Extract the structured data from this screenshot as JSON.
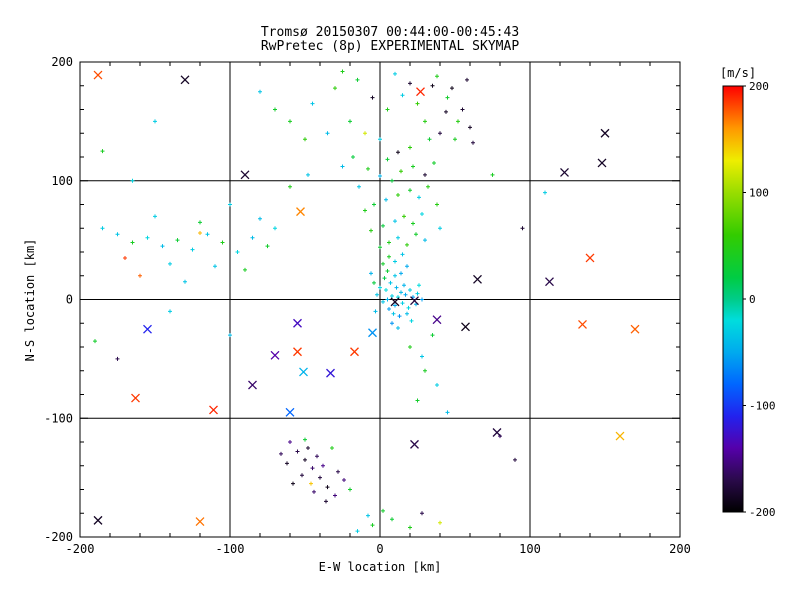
{
  "chart_data": {
    "type": "scatter",
    "title": "Tromsø 20150307 00:44:00-00:45:43",
    "subtitle": "RwPretec (8p) EXPERIMENTAL SKYMAP",
    "xlabel": "E-W location [km]",
    "ylabel": "N-S location [km]",
    "xlim": [
      -200,
      200
    ],
    "ylim": [
      -200,
      200
    ],
    "xticks": [
      -200,
      -100,
      0,
      100,
      200
    ],
    "yticks": [
      -200,
      -100,
      0,
      100,
      200
    ],
    "gridlines": [
      -100,
      0,
      100
    ],
    "minor_tick_step": 20,
    "grid": "on",
    "colorbar": {
      "label": "[m/s]",
      "ticks": [
        200,
        100,
        0,
        -100,
        -200
      ],
      "range": [
        -200,
        200
      ]
    },
    "colormap_stops": [
      {
        "v": -200,
        "c": "#000000"
      },
      {
        "v": -170,
        "c": "#2a0a4a"
      },
      {
        "v": -140,
        "c": "#5500aa"
      },
      {
        "v": -110,
        "c": "#2222ee"
      },
      {
        "v": -80,
        "c": "#0066ff"
      },
      {
        "v": -50,
        "c": "#00aaee"
      },
      {
        "v": -20,
        "c": "#00dddd"
      },
      {
        "v": 0,
        "c": "#00cc88"
      },
      {
        "v": 20,
        "c": "#00cc44"
      },
      {
        "v": 60,
        "c": "#33cc00"
      },
      {
        "v": 100,
        "c": "#99dd00"
      },
      {
        "v": 130,
        "c": "#eeee00"
      },
      {
        "v": 160,
        "c": "#ff9900"
      },
      {
        "v": 200,
        "c": "#ff0000"
      }
    ],
    "point_format": [
      "x_km",
      "y_km",
      "velocity_ms",
      "marker(0=dot,1=x)"
    ],
    "points": [
      [
        2,
        -2,
        -35,
        0
      ],
      [
        5,
        0,
        -45,
        0
      ],
      [
        8,
        3,
        -30,
        0
      ],
      [
        10,
        -5,
        -50,
        0
      ],
      [
        12,
        2,
        -25,
        0
      ],
      [
        14,
        6,
        -40,
        0
      ],
      [
        6,
        -8,
        -55,
        0
      ],
      [
        9,
        -12,
        -35,
        0
      ],
      [
        4,
        8,
        -20,
        0
      ],
      [
        11,
        10,
        -45,
        0
      ],
      [
        15,
        -3,
        -30,
        0
      ],
      [
        17,
        4,
        -50,
        0
      ],
      [
        19,
        -7,
        -25,
        0
      ],
      [
        13,
        -14,
        -60,
        0
      ],
      [
        7,
        14,
        -35,
        0
      ],
      [
        3,
        18,
        20,
        0
      ],
      [
        16,
        12,
        -45,
        0
      ],
      [
        20,
        8,
        -30,
        0
      ],
      [
        22,
        2,
        -55,
        0
      ],
      [
        18,
        -12,
        -40,
        0
      ],
      [
        21,
        -18,
        -25,
        0
      ],
      [
        10,
        20,
        -35,
        0
      ],
      [
        5,
        24,
        30,
        0
      ],
      [
        14,
        22,
        -50,
        0
      ],
      [
        25,
        5,
        -30,
        0
      ],
      [
        24,
        -4,
        -45,
        0
      ],
      [
        8,
        -20,
        -60,
        0
      ],
      [
        12,
        -24,
        -40,
        0
      ],
      [
        0,
        10,
        -25,
        0
      ],
      [
        -2,
        4,
        -35,
        0
      ],
      [
        -4,
        14,
        25,
        0
      ],
      [
        -6,
        22,
        -45,
        0
      ],
      [
        2,
        30,
        35,
        0
      ],
      [
        10,
        32,
        -30,
        0
      ],
      [
        18,
        28,
        -50,
        0
      ],
      [
        -3,
        -10,
        -40,
        0
      ],
      [
        26,
        12,
        -20,
        0
      ],
      [
        28,
        0,
        -55,
        0
      ],
      [
        6,
        36,
        40,
        0
      ],
      [
        15,
        38,
        -35,
        0
      ],
      [
        0,
        44,
        30,
        0
      ],
      [
        6,
        48,
        45,
        0
      ],
      [
        12,
        52,
        -30,
        0
      ],
      [
        18,
        46,
        55,
        0
      ],
      [
        24,
        55,
        35,
        0
      ],
      [
        30,
        50,
        -40,
        0
      ],
      [
        -6,
        58,
        50,
        0
      ],
      [
        2,
        62,
        25,
        0
      ],
      [
        10,
        66,
        -35,
        0
      ],
      [
        16,
        70,
        60,
        0
      ],
      [
        22,
        64,
        40,
        0
      ],
      [
        28,
        72,
        -25,
        0
      ],
      [
        -10,
        75,
        45,
        0
      ],
      [
        -4,
        80,
        30,
        0
      ],
      [
        4,
        84,
        -40,
        0
      ],
      [
        12,
        88,
        55,
        0
      ],
      [
        20,
        92,
        35,
        0
      ],
      [
        26,
        86,
        -30,
        0
      ],
      [
        32,
        95,
        50,
        0
      ],
      [
        8,
        100,
        25,
        0
      ],
      [
        0,
        104,
        -45,
        0
      ],
      [
        14,
        108,
        60,
        0
      ],
      [
        22,
        112,
        40,
        0
      ],
      [
        30,
        105,
        -180,
        0
      ],
      [
        -8,
        110,
        45,
        0
      ],
      [
        -14,
        95,
        -35,
        0
      ],
      [
        5,
        118,
        30,
        0
      ],
      [
        12,
        124,
        -190,
        0
      ],
      [
        20,
        128,
        55,
        0
      ],
      [
        36,
        115,
        35,
        0
      ],
      [
        40,
        60,
        -30,
        0
      ],
      [
        38,
        80,
        50,
        0
      ],
      [
        -18,
        120,
        25,
        0
      ],
      [
        -25,
        112,
        -40,
        0
      ],
      [
        -60,
        150,
        40,
        0
      ],
      [
        -45,
        165,
        -35,
        0
      ],
      [
        -30,
        178,
        55,
        0
      ],
      [
        -15,
        185,
        30,
        0
      ],
      [
        -5,
        170,
        -185,
        0
      ],
      [
        5,
        160,
        45,
        0
      ],
      [
        15,
        172,
        -30,
        0
      ],
      [
        25,
        165,
        60,
        0
      ],
      [
        35,
        180,
        -190,
        0
      ],
      [
        45,
        170,
        35,
        0
      ],
      [
        55,
        160,
        -180,
        0
      ],
      [
        30,
        150,
        50,
        0
      ],
      [
        40,
        140,
        -175,
        0
      ],
      [
        50,
        135,
        40,
        0
      ],
      [
        60,
        145,
        -185,
        0
      ],
      [
        -20,
        150,
        30,
        0
      ],
      [
        -35,
        140,
        -40,
        0
      ],
      [
        -50,
        135,
        55,
        0
      ],
      [
        10,
        190,
        -30,
        0
      ],
      [
        20,
        182,
        -180,
        0
      ],
      [
        38,
        188,
        45,
        0
      ],
      [
        48,
        178,
        -190,
        0
      ],
      [
        -70,
        160,
        35,
        0
      ],
      [
        -80,
        175,
        -35,
        0
      ],
      [
        62,
        132,
        -175,
        0
      ],
      [
        52,
        150,
        50,
        0
      ],
      [
        44,
        158,
        -185,
        0
      ],
      [
        33,
        135,
        30,
        0
      ],
      [
        -10,
        140,
        120,
        0
      ],
      [
        0,
        135,
        -30,
        0
      ],
      [
        -25,
        192,
        45,
        0
      ],
      [
        58,
        185,
        -180,
        0
      ],
      [
        -185,
        60,
        -30,
        0
      ],
      [
        -175,
        55,
        -35,
        0
      ],
      [
        -165,
        48,
        40,
        0
      ],
      [
        -155,
        52,
        -25,
        0
      ],
      [
        -145,
        45,
        -40,
        0
      ],
      [
        -135,
        50,
        30,
        0
      ],
      [
        -125,
        42,
        -30,
        0
      ],
      [
        -115,
        55,
        -35,
        0
      ],
      [
        -105,
        48,
        45,
        0
      ],
      [
        -95,
        40,
        -25,
        0
      ],
      [
        -85,
        52,
        -40,
        0
      ],
      [
        -75,
        45,
        35,
        0
      ],
      [
        -170,
        35,
        185,
        0
      ],
      [
        -140,
        30,
        -30,
        0
      ],
      [
        -110,
        28,
        -35,
        0
      ],
      [
        -90,
        25,
        40,
        0
      ],
      [
        -70,
        60,
        -25,
        0
      ],
      [
        -80,
        68,
        -40,
        0
      ],
      [
        -120,
        65,
        30,
        0
      ],
      [
        -150,
        70,
        -30,
        0
      ],
      [
        -160,
        20,
        175,
        0
      ],
      [
        -130,
        15,
        -35,
        0
      ],
      [
        -150,
        150,
        -30,
        0
      ],
      [
        -185,
        125,
        40,
        0
      ],
      [
        -165,
        100,
        -25,
        0
      ],
      [
        -120,
        56,
        150,
        0
      ],
      [
        -100,
        80,
        -30,
        0
      ],
      [
        -60,
        95,
        45,
        0
      ],
      [
        -48,
        105,
        -35,
        0
      ],
      [
        -190,
        -35,
        35,
        0
      ],
      [
        -175,
        -50,
        -170,
        0
      ],
      [
        -140,
        -10,
        -30,
        0
      ],
      [
        -100,
        -30,
        -40,
        0
      ],
      [
        -60,
        -120,
        -150,
        0
      ],
      [
        -55,
        -128,
        -170,
        0
      ],
      [
        -50,
        -135,
        -185,
        0
      ],
      [
        -45,
        -142,
        -160,
        0
      ],
      [
        -40,
        -150,
        -175,
        0
      ],
      [
        -35,
        -158,
        -190,
        0
      ],
      [
        -30,
        -165,
        -155,
        0
      ],
      [
        -48,
        -125,
        -180,
        0
      ],
      [
        -42,
        -132,
        -165,
        0
      ],
      [
        -38,
        -140,
        -150,
        0
      ],
      [
        -52,
        -148,
        -175,
        0
      ],
      [
        -58,
        -155,
        -190,
        0
      ],
      [
        -44,
        -162,
        -160,
        0
      ],
      [
        -36,
        -170,
        -180,
        0
      ],
      [
        -28,
        -145,
        -170,
        0
      ],
      [
        -24,
        -152,
        -155,
        0
      ],
      [
        -62,
        -138,
        -185,
        0
      ],
      [
        -66,
        -130,
        -165,
        0
      ],
      [
        -20,
        -160,
        35,
        0
      ],
      [
        -32,
        -125,
        45,
        0
      ],
      [
        -46,
        -155,
        145,
        0
      ],
      [
        -50,
        -118,
        30,
        0
      ],
      [
        -5,
        -190,
        40,
        0
      ],
      [
        8,
        -185,
        30,
        0
      ],
      [
        -15,
        -195,
        -30,
        0
      ],
      [
        20,
        -192,
        45,
        0
      ],
      [
        40,
        -188,
        120,
        0
      ],
      [
        2,
        -178,
        35,
        0
      ],
      [
        -8,
        -182,
        -35,
        0
      ],
      [
        28,
        -180,
        -170,
        0
      ],
      [
        30,
        -60,
        40,
        0
      ],
      [
        38,
        -72,
        -30,
        0
      ],
      [
        25,
        -85,
        35,
        0
      ],
      [
        45,
        -95,
        -40,
        0
      ],
      [
        20,
        -40,
        45,
        0
      ],
      [
        28,
        -48,
        -35,
        0
      ],
      [
        35,
        -30,
        30,
        0
      ],
      [
        90,
        -135,
        -175,
        0
      ],
      [
        80,
        -115,
        -160,
        0
      ],
      [
        110,
        90,
        -30,
        0
      ],
      [
        75,
        105,
        40,
        0
      ],
      [
        95,
        60,
        -180,
        0
      ],
      [
        -130,
        185,
        -185,
        1
      ],
      [
        27,
        175,
        190,
        1
      ],
      [
        150,
        140,
        -185,
        1
      ],
      [
        148,
        115,
        -185,
        1
      ],
      [
        123,
        107,
        -180,
        1
      ],
      [
        140,
        35,
        185,
        1
      ],
      [
        135,
        -21,
        180,
        1
      ],
      [
        170,
        -25,
        175,
        1
      ],
      [
        57,
        -23,
        -190,
        1
      ],
      [
        38,
        -17,
        -150,
        1
      ],
      [
        10,
        -2,
        -185,
        1
      ],
      [
        23,
        -1,
        -175,
        1
      ],
      [
        113,
        15,
        -170,
        1
      ],
      [
        -55,
        -20,
        -130,
        1
      ],
      [
        -70,
        -47,
        -140,
        1
      ],
      [
        -55,
        -44,
        185,
        1
      ],
      [
        -51,
        -61,
        -45,
        1
      ],
      [
        -17,
        -44,
        185,
        1
      ],
      [
        -111,
        -93,
        190,
        1
      ],
      [
        -85,
        -72,
        -160,
        1
      ],
      [
        160,
        -115,
        150,
        1
      ],
      [
        78,
        -112,
        -175,
        1
      ],
      [
        -163,
        -83,
        185,
        1
      ],
      [
        -155,
        -25,
        -110,
        1
      ],
      [
        -188,
        -186,
        -185,
        1
      ],
      [
        -120,
        -187,
        170,
        1
      ],
      [
        -90,
        105,
        -180,
        1
      ],
      [
        -188,
        189,
        180,
        1
      ],
      [
        65,
        17,
        -185,
        1
      ],
      [
        -53,
        74,
        165,
        1
      ],
      [
        23,
        -122,
        -170,
        1
      ],
      [
        -5,
        -28,
        -60,
        1
      ],
      [
        -33,
        -62,
        -120,
        1
      ],
      [
        -60,
        -95,
        -80,
        1
      ]
    ]
  }
}
